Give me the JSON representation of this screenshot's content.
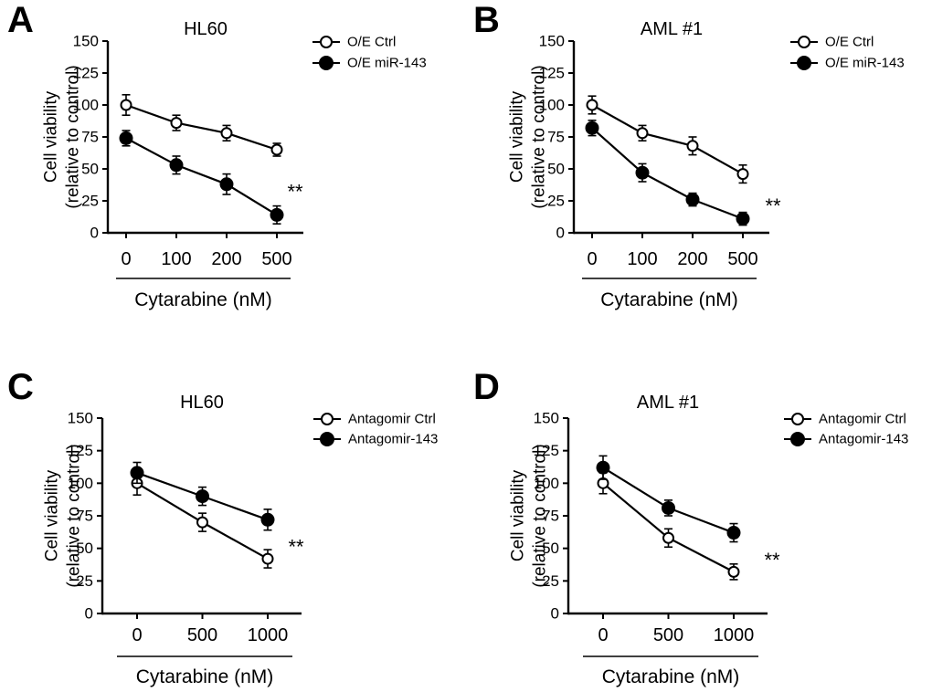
{
  "figure": {
    "background": "#ffffff",
    "ink": "#000000"
  },
  "chart_data": [
    {
      "panel_letter": "A",
      "type": "line",
      "title": "HL60",
      "xlabel": "Cytarabine (nM)",
      "ylabel": [
        "Cell viability",
        "(relative to control)"
      ],
      "categories": [
        "0",
        "100",
        "200",
        "500"
      ],
      "ylim": [
        0,
        150
      ],
      "yticks": [
        0,
        25,
        50,
        75,
        100,
        125,
        150
      ],
      "legend_position": "top-right",
      "significance": {
        "text": "**",
        "y": 36
      },
      "series": [
        {
          "name": "O/E Ctrl",
          "marker": "open",
          "values": [
            100,
            86,
            78,
            65
          ],
          "errors": [
            8,
            6,
            6,
            5
          ]
        },
        {
          "name": "O/E miR-143",
          "marker": "filled",
          "values": [
            74,
            53,
            38,
            14
          ],
          "errors": [
            6,
            7,
            8,
            7
          ]
        }
      ]
    },
    {
      "panel_letter": "B",
      "type": "line",
      "title": "AML #1",
      "xlabel": "Cytarabine (nM)",
      "ylabel": [
        "Cell viability",
        "(relative to control)"
      ],
      "categories": [
        "0",
        "100",
        "200",
        "500"
      ],
      "ylim": [
        0,
        150
      ],
      "yticks": [
        0,
        25,
        50,
        75,
        100,
        125,
        150
      ],
      "legend_position": "top-right",
      "significance": {
        "text": "**",
        "y": 25
      },
      "series": [
        {
          "name": "O/E Ctrl",
          "marker": "open",
          "values": [
            100,
            78,
            68,
            46
          ],
          "errors": [
            7,
            6,
            7,
            7
          ]
        },
        {
          "name": "O/E miR-143",
          "marker": "filled",
          "values": [
            82,
            47,
            26,
            11
          ],
          "errors": [
            6,
            7,
            5,
            5
          ]
        }
      ]
    },
    {
      "panel_letter": "C",
      "type": "line",
      "title": "HL60",
      "xlabel": "Cytarabine (nM)",
      "ylabel": [
        "Cell viability",
        "(relative to control)"
      ],
      "categories": [
        "0",
        "500",
        "1000"
      ],
      "ylim": [
        0,
        150
      ],
      "yticks": [
        0,
        25,
        50,
        75,
        100,
        125,
        150
      ],
      "legend_position": "top-right",
      "significance": {
        "text": "**",
        "y": 55
      },
      "series": [
        {
          "name": "Antagomir Ctrl",
          "marker": "open",
          "values": [
            100,
            70,
            42
          ],
          "errors": [
            9,
            7,
            7
          ]
        },
        {
          "name": "Antagomir-143",
          "marker": "filled",
          "values": [
            108,
            90,
            72
          ],
          "errors": [
            8,
            7,
            8
          ]
        }
      ]
    },
    {
      "panel_letter": "D",
      "type": "line",
      "title": "AML #1",
      "xlabel": "Cytarabine (nM)",
      "ylabel": [
        "Cell viability",
        "(relative to control)"
      ],
      "categories": [
        "0",
        "500",
        "1000"
      ],
      "ylim": [
        0,
        150
      ],
      "yticks": [
        0,
        25,
        50,
        75,
        100,
        125,
        150
      ],
      "legend_position": "top-right",
      "significance": {
        "text": "**",
        "y": 45
      },
      "series": [
        {
          "name": "Antagomir Ctrl",
          "marker": "open",
          "values": [
            100,
            58,
            32
          ],
          "errors": [
            8,
            7,
            6
          ]
        },
        {
          "name": "Antagomir-143",
          "marker": "filled",
          "values": [
            112,
            81,
            62
          ],
          "errors": [
            9,
            6,
            7
          ]
        }
      ]
    }
  ]
}
